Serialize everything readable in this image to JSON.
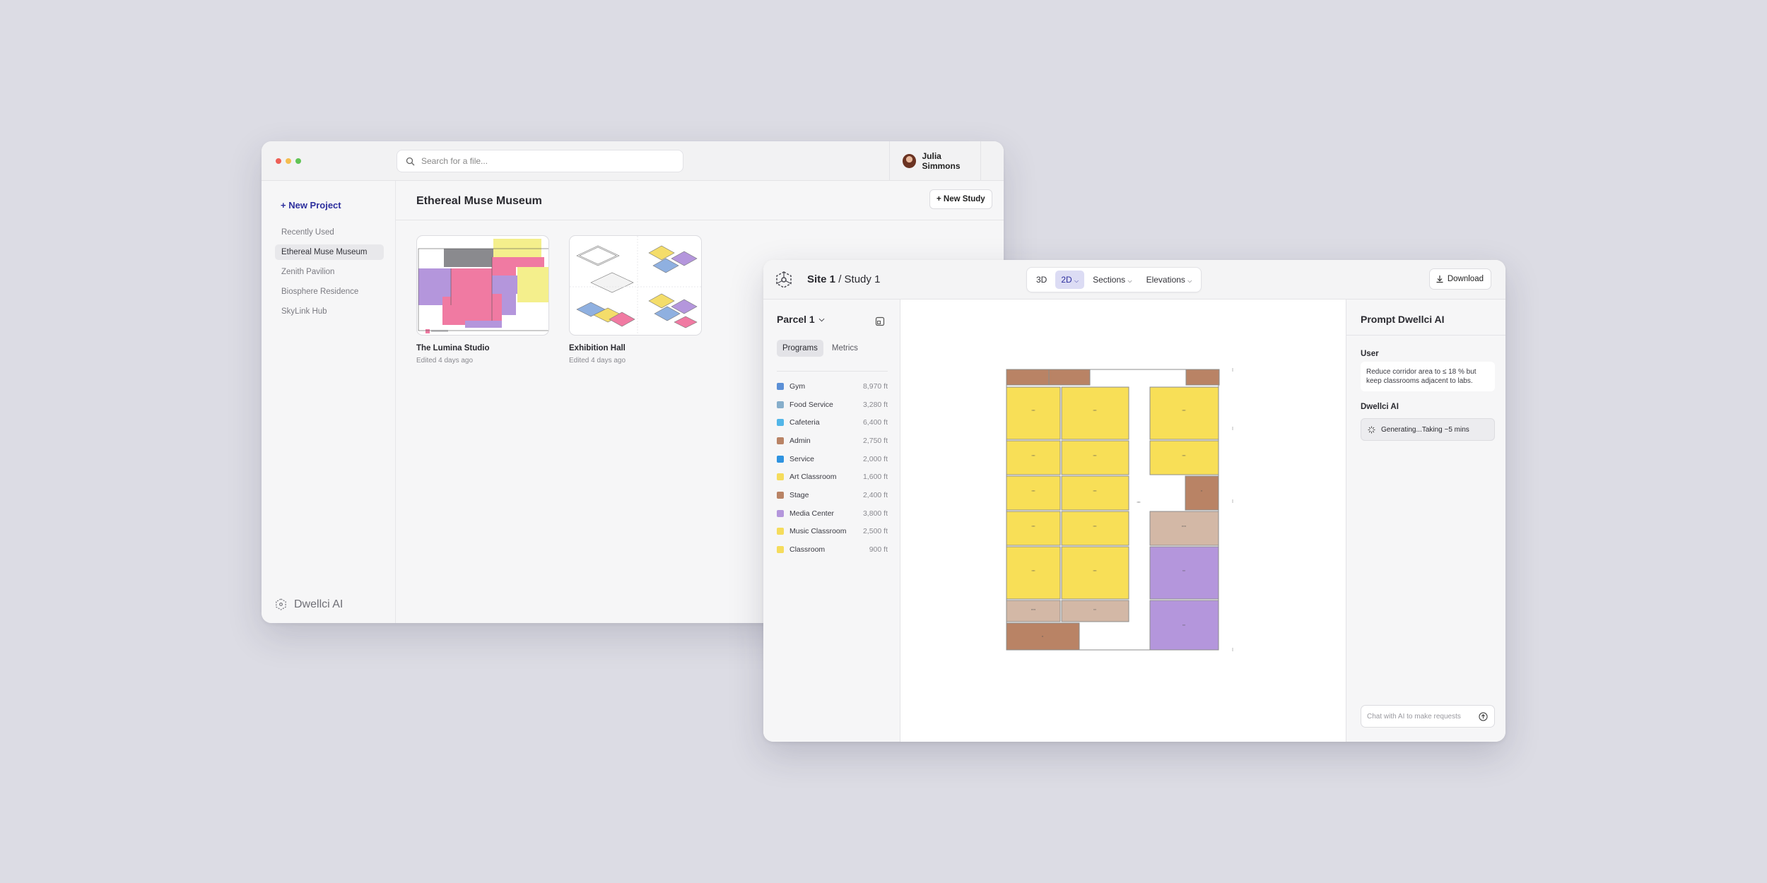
{
  "browser": {
    "search_placeholder": "Search for a file...",
    "user_name": "Julia Simmons",
    "new_project": "+ New Project",
    "nav": [
      "Recently Used",
      "Ethereal Muse Museum",
      "Zenith Pavilion",
      "Biosphere Residence",
      "SkyLink Hub"
    ],
    "active_nav": 1,
    "brand": "Dwellci AI",
    "project_title": "Ethereal Muse Museum",
    "new_study": "+ New Study",
    "studies": [
      {
        "title": "The Lumina Studio",
        "edited": "Edited 4 days ago"
      },
      {
        "title": "Exhibition Hall",
        "edited": "Edited 4 days ago"
      }
    ]
  },
  "study": {
    "crumb_site": "Site 1",
    "crumb_sep": " / ",
    "crumb_study": "Study 1",
    "views": [
      "3D",
      "2D",
      "Sections",
      "Elevations"
    ],
    "active_view": "2D",
    "download": "Download",
    "parcel": "Parcel 1",
    "tabs": [
      "Programs",
      "Metrics"
    ],
    "programs": [
      {
        "name": "Gym",
        "area": "8,970 ft",
        "color": "#5b8fd6"
      },
      {
        "name": "Food Service",
        "area": "3,280 ft",
        "color": "#86aecb"
      },
      {
        "name": "Cafeteria",
        "area": "6,400 ft",
        "color": "#52b6e8"
      },
      {
        "name": "Admin",
        "area": "2,750 ft",
        "color": "#b98365"
      },
      {
        "name": "Service",
        "area": "2,000 ft",
        "color": "#2f93e0"
      },
      {
        "name": "Art Classroom",
        "area": "1,600 ft",
        "color": "#f5dc5c"
      },
      {
        "name": "Stage",
        "area": "2,400 ft",
        "color": "#b98365"
      },
      {
        "name": "Media Center",
        "area": "3,800 ft",
        "color": "#b496dc"
      },
      {
        "name": "Music Classroom",
        "area": "2,500 ft",
        "color": "#f5dc5c"
      },
      {
        "name": "Classroom",
        "area": "900 ft",
        "color": "#f5dc5c"
      }
    ],
    "prompt_title": "Prompt Dwellci AI",
    "user_label": "User",
    "user_message": "Reduce corridor area to ≤ 18 % but keep classrooms adjacent to labs.",
    "ai_label": "Dwellci AI",
    "ai_status": "Generating...Taking ~5 mins",
    "chat_placeholder": "Chat with AI to make requests"
  }
}
